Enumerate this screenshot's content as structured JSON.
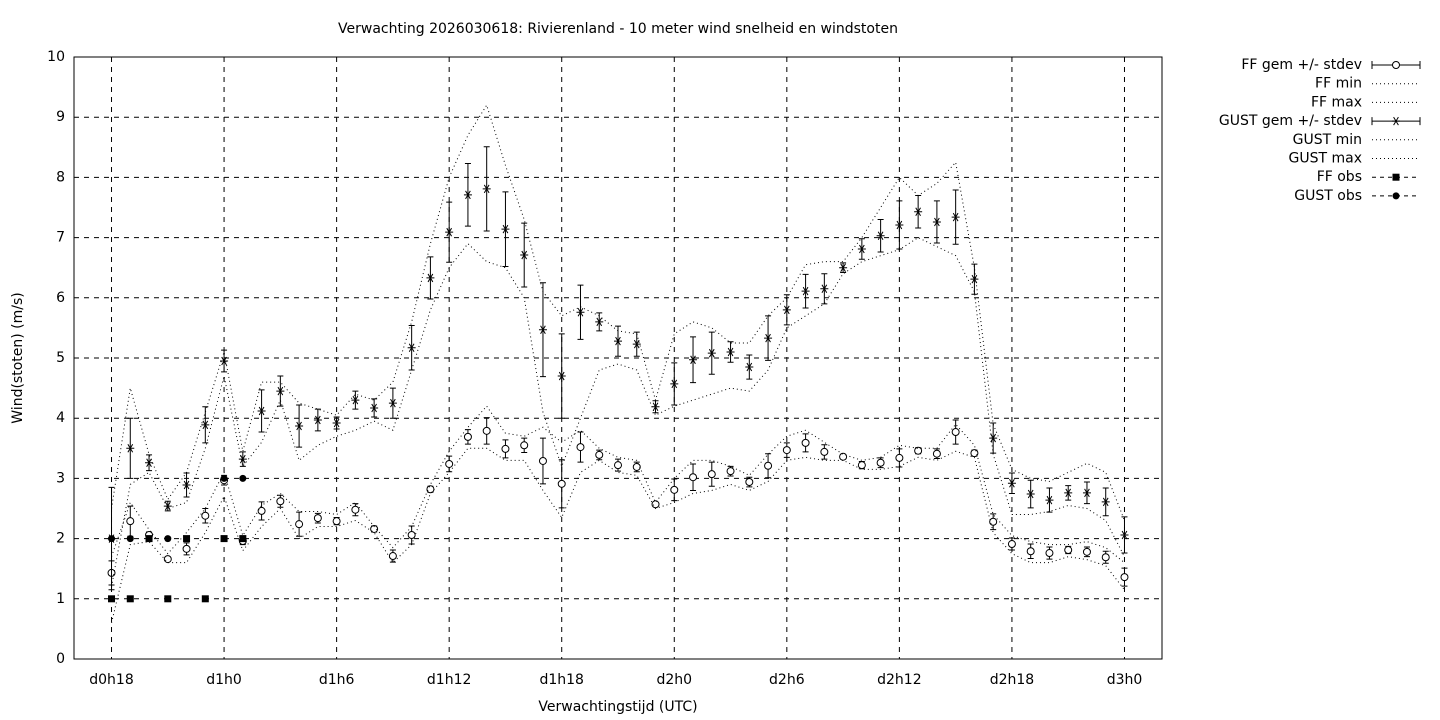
{
  "chart_data": {
    "type": "errorbar-line",
    "title": "Verwachting 2026030618: Rivierenland - 10 meter wind snelheid en windstoten",
    "xlabel": "Verwachtingstijd (UTC)",
    "ylabel": "Wind(stoten) (m/s)",
    "x": [
      18,
      19,
      20,
      21,
      22,
      23,
      24,
      25,
      26,
      27,
      28,
      29,
      30,
      31,
      32,
      33,
      34,
      35,
      36,
      37,
      38,
      39,
      40,
      41,
      42,
      43,
      44,
      45,
      46,
      47,
      48,
      49,
      50,
      51,
      52,
      53,
      54,
      55,
      56,
      57,
      58,
      59,
      60,
      61,
      62,
      63,
      64,
      65,
      66,
      67,
      68,
      69,
      70,
      71,
      72
    ],
    "xlim": [
      16,
      74
    ],
    "xticks": [
      {
        "value": 18,
        "label": "d0h18"
      },
      {
        "value": 24,
        "label": "d1h0"
      },
      {
        "value": 30,
        "label": "d1h6"
      },
      {
        "value": 36,
        "label": "d1h12"
      },
      {
        "value": 42,
        "label": "d1h18"
      },
      {
        "value": 48,
        "label": "d2h0"
      },
      {
        "value": 54,
        "label": "d2h6"
      },
      {
        "value": 60,
        "label": "d2h12"
      },
      {
        "value": 66,
        "label": "d2h18"
      },
      {
        "value": 72,
        "label": "d3h0"
      }
    ],
    "ylim": [
      0,
      10
    ],
    "yticks": [
      0,
      1,
      2,
      3,
      4,
      5,
      6,
      7,
      8,
      9,
      10
    ],
    "grid": true,
    "legend": "right",
    "color": "#000000",
    "series": [
      {
        "name": "FF gem +/- stdev",
        "marker": "circle",
        "line": "none",
        "values": [
          1.43,
          2.29,
          2.06,
          1.66,
          1.83,
          2.38,
          2.97,
          1.96,
          2.46,
          2.62,
          2.24,
          2.34,
          2.29,
          2.48,
          2.16,
          1.71,
          2.06,
          2.82,
          3.24,
          3.69,
          3.79,
          3.49,
          3.55,
          3.29,
          2.91,
          3.52,
          3.39,
          3.22,
          3.19,
          2.57,
          2.81,
          3.02,
          3.07,
          3.12,
          2.94,
          3.21,
          3.47,
          3.59,
          3.44,
          3.36,
          3.22,
          3.26,
          3.34,
          3.46,
          3.41,
          3.77,
          3.42,
          2.28,
          1.91,
          1.79,
          1.76,
          1.81,
          1.78,
          1.69,
          1.36
        ],
        "errors": [
          0.2,
          0.25,
          0.05,
          0.03,
          0.1,
          0.12,
          0.08,
          0.06,
          0.15,
          0.1,
          0.2,
          0.08,
          0.06,
          0.1,
          0.05,
          0.1,
          0.15,
          0.05,
          0.13,
          0.12,
          0.22,
          0.15,
          0.12,
          0.38,
          0.4,
          0.25,
          0.08,
          0.1,
          0.08,
          0.03,
          0.18,
          0.22,
          0.2,
          0.08,
          0.08,
          0.2,
          0.12,
          0.15,
          0.12,
          0.04,
          0.06,
          0.08,
          0.15,
          0.05,
          0.08,
          0.2,
          0.05,
          0.13,
          0.1,
          0.12,
          0.1,
          0.06,
          0.08,
          0.1,
          0.15
        ]
      },
      {
        "name": "FF min",
        "marker": "none",
        "line": "dotted",
        "values": [
          0.6,
          1.9,
          1.95,
          1.6,
          1.6,
          2.1,
          2.7,
          1.8,
          2.2,
          2.5,
          2.0,
          2.2,
          2.2,
          2.3,
          2.1,
          1.6,
          1.9,
          2.75,
          3.1,
          3.5,
          3.5,
          3.3,
          3.3,
          2.8,
          2.35,
          3.1,
          3.3,
          3.1,
          3.05,
          2.5,
          2.6,
          2.75,
          2.8,
          2.9,
          2.8,
          2.95,
          3.3,
          3.35,
          3.3,
          3.3,
          3.15,
          3.15,
          3.2,
          3.35,
          3.3,
          3.45,
          3.35,
          2.1,
          1.75,
          1.6,
          1.6,
          1.7,
          1.65,
          1.55,
          1.15
        ]
      },
      {
        "name": "FF max",
        "marker": "none",
        "line": "dotted",
        "values": [
          1.7,
          2.6,
          2.15,
          1.75,
          2.1,
          2.5,
          3.1,
          2.05,
          2.55,
          2.75,
          2.45,
          2.45,
          2.4,
          2.6,
          2.2,
          1.85,
          2.2,
          2.9,
          3.45,
          3.85,
          4.2,
          3.75,
          3.7,
          3.85,
          3.6,
          3.8,
          3.5,
          3.35,
          3.3,
          2.6,
          3.0,
          3.3,
          3.3,
          3.2,
          3.05,
          3.4,
          3.7,
          3.8,
          3.6,
          3.4,
          3.3,
          3.35,
          3.55,
          3.5,
          3.5,
          3.9,
          3.55,
          2.4,
          2.05,
          1.95,
          1.9,
          1.9,
          1.95,
          1.85,
          1.6
        ]
      },
      {
        "name": "GUST gem +/- stdev",
        "marker": "star",
        "line": "none",
        "values": [
          2.0,
          3.5,
          3.26,
          2.54,
          2.89,
          3.89,
          4.95,
          3.32,
          4.12,
          4.45,
          3.87,
          3.97,
          3.92,
          4.3,
          4.17,
          4.25,
          5.17,
          6.33,
          7.09,
          7.71,
          7.81,
          7.14,
          6.71,
          5.47,
          4.7,
          5.76,
          5.6,
          5.28,
          5.23,
          4.19,
          4.57,
          4.97,
          5.08,
          5.1,
          4.85,
          5.33,
          5.8,
          6.11,
          6.15,
          6.5,
          6.81,
          7.03,
          7.21,
          7.43,
          7.26,
          7.34,
          6.31,
          3.67,
          2.92,
          2.74,
          2.64,
          2.76,
          2.76,
          2.61,
          2.06
        ],
        "errors": [
          0.85,
          0.5,
          0.13,
          0.08,
          0.2,
          0.3,
          0.18,
          0.12,
          0.35,
          0.25,
          0.35,
          0.18,
          0.1,
          0.15,
          0.15,
          0.25,
          0.37,
          0.35,
          0.5,
          0.52,
          0.7,
          0.62,
          0.53,
          0.78,
          0.7,
          0.45,
          0.15,
          0.25,
          0.2,
          0.1,
          0.35,
          0.38,
          0.35,
          0.17,
          0.2,
          0.37,
          0.25,
          0.28,
          0.25,
          0.08,
          0.17,
          0.27,
          0.4,
          0.27,
          0.35,
          0.45,
          0.25,
          0.25,
          0.17,
          0.23,
          0.2,
          0.12,
          0.18,
          0.23,
          0.3
        ]
      },
      {
        "name": "GUST min",
        "marker": "none",
        "line": "dotted",
        "values": [
          1.2,
          2.9,
          3.1,
          2.5,
          2.6,
          3.5,
          4.7,
          3.2,
          3.6,
          4.3,
          3.3,
          3.55,
          3.7,
          3.8,
          3.95,
          3.8,
          4.8,
          5.8,
          6.5,
          6.9,
          6.6,
          6.5,
          6.0,
          4.1,
          3.2,
          4.0,
          4.8,
          4.9,
          4.8,
          4.05,
          4.2,
          4.3,
          4.4,
          4.5,
          4.45,
          4.8,
          5.5,
          5.7,
          5.9,
          6.4,
          6.6,
          6.7,
          6.8,
          7.0,
          6.85,
          6.7,
          6.1,
          3.4,
          2.4,
          2.4,
          2.45,
          2.55,
          2.5,
          2.3,
          1.7
        ]
      },
      {
        "name": "GUST max",
        "marker": "none",
        "line": "dotted",
        "values": [
          2.5,
          4.5,
          3.4,
          2.65,
          3.1,
          4.1,
          5.1,
          3.45,
          4.6,
          4.6,
          4.25,
          4.15,
          4.05,
          4.4,
          4.3,
          4.6,
          5.6,
          6.9,
          8.0,
          8.7,
          9.2,
          8.2,
          7.3,
          6.1,
          5.7,
          5.85,
          5.7,
          5.45,
          5.4,
          4.3,
          5.4,
          5.6,
          5.5,
          5.25,
          5.25,
          5.7,
          6.0,
          6.55,
          6.6,
          6.6,
          7.0,
          7.5,
          8.0,
          7.7,
          7.9,
          8.25,
          6.5,
          3.9,
          3.15,
          3.0,
          2.95,
          3.1,
          3.25,
          3.1,
          2.3
        ]
      },
      {
        "name": "FF obs",
        "marker": "square",
        "line": "dashed",
        "x": [
          18,
          19,
          20,
          21,
          22,
          23,
          24,
          25
        ],
        "values": [
          1,
          1,
          2,
          1,
          2,
          1,
          2,
          2
        ]
      },
      {
        "name": "GUST obs",
        "marker": "dot",
        "line": "dashed",
        "x": [
          18,
          19,
          21,
          24,
          25
        ],
        "values": [
          2,
          2,
          2,
          3,
          3
        ]
      }
    ]
  }
}
